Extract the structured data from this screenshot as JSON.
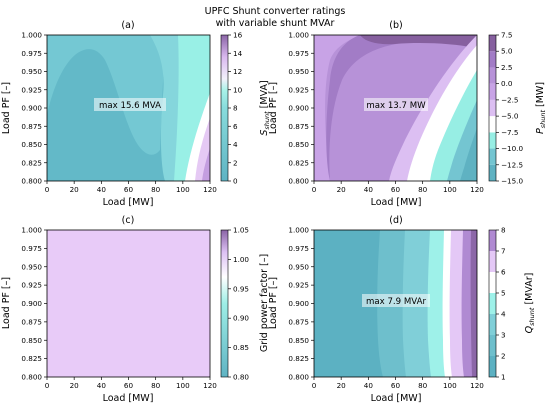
{
  "figure": {
    "title_line1": "UPFC Shunt converter ratings",
    "title_line2": "with variable shunt MVAr"
  },
  "chart_data": [
    {
      "type": "heatmap",
      "panel": "(a)",
      "xlabel": "Load [MW]",
      "ylabel": "Load PF [–]",
      "xlim": [
        0,
        120
      ],
      "ylim": [
        0.8,
        1.0
      ],
      "x_ticks": [
        0,
        20,
        40,
        60,
        80,
        100,
        120
      ],
      "y_ticks": [
        0.8,
        0.825,
        0.85,
        0.875,
        0.9,
        0.925,
        0.95,
        0.975,
        1.0
      ],
      "y_tick_labels": [
        "0.800",
        "0.825",
        "0.850",
        "0.875",
        "0.900",
        "0.925",
        "0.950",
        "0.975",
        "1.000"
      ],
      "colorbar": {
        "label_main": "S",
        "label_sub": "shunt",
        "label_unit": " [MVA]",
        "ticks": [
          0,
          2,
          4,
          6,
          8,
          10,
          12,
          14,
          16
        ],
        "range": [
          0,
          16
        ]
      },
      "annotation": "max 15.6 MVA",
      "contour_regions": [
        {
          "level_range": [
            2,
            4
          ],
          "color": "#63b9c8"
        },
        {
          "level_range": [
            4,
            6
          ],
          "color": "#74c8d3"
        },
        {
          "level_range": [
            6,
            8
          ],
          "color": "#85d6dc"
        },
        {
          "level_range": [
            8,
            10
          ],
          "color": "#99f0e6"
        },
        {
          "level_range": [
            10,
            12
          ],
          "color": "#ffffff"
        },
        {
          "level_range": [
            12,
            14
          ],
          "color": "#e5c9f4"
        },
        {
          "level_range": [
            14,
            16
          ],
          "color": "#c49ee0"
        }
      ]
    },
    {
      "type": "heatmap",
      "panel": "(b)",
      "xlabel": "Load [MW]",
      "ylabel": "Load PF [–]",
      "xlim": [
        0,
        120
      ],
      "ylim": [
        0.8,
        1.0
      ],
      "x_ticks": [
        0,
        20,
        40,
        60,
        80,
        100,
        120
      ],
      "y_ticks": [
        0.8,
        0.825,
        0.85,
        0.875,
        0.9,
        0.925,
        0.95,
        0.975,
        1.0
      ],
      "y_tick_labels": [
        "0.800",
        "0.825",
        "0.850",
        "0.875",
        "0.900",
        "0.925",
        "0.950",
        "0.975",
        "1.000"
      ],
      "colorbar": {
        "label_main": "P",
        "label_sub": "shunt",
        "label_unit": " [MW]",
        "ticks": [
          -15.0,
          -12.5,
          -10.0,
          -7.5,
          -5.0,
          -2.5,
          0.0,
          2.5,
          5.0,
          7.5
        ],
        "tick_labels": [
          "−15.0",
          "−12.5",
          "−10.0",
          "−7.5",
          "−5.0",
          "−2.5",
          "0.0",
          "2.5",
          "5.0",
          "7.5"
        ],
        "range": [
          -15,
          7.5
        ]
      },
      "annotation": "max 13.7 MW",
      "contour_regions": [
        {
          "level_range": [
            -15,
            -12.5
          ],
          "color": "#5fb2c2"
        },
        {
          "level_range": [
            -12.5,
            -10
          ],
          "color": "#74c5d1"
        },
        {
          "level_range": [
            -10,
            -7.5
          ],
          "color": "#97eee4"
        },
        {
          "level_range": [
            -7.5,
            -5
          ],
          "color": "#ffffff"
        },
        {
          "level_range": [
            -5,
            -2.5
          ],
          "color": "#dcbff2"
        },
        {
          "level_range": [
            -2.5,
            0
          ],
          "color": "#c8a3e6"
        },
        {
          "level_range": [
            0,
            2.5
          ],
          "color": "#b792d8"
        },
        {
          "level_range": [
            2.5,
            5
          ],
          "color": "#a27cc6"
        },
        {
          "level_range": [
            5,
            7.5
          ],
          "color": "#86609f"
        }
      ]
    },
    {
      "type": "heatmap",
      "panel": "(c)",
      "xlabel": "Load [MW]",
      "ylabel": "Load PF [–]",
      "xlim": [
        0,
        120
      ],
      "ylim": [
        0.8,
        1.0
      ],
      "x_ticks": [
        0,
        20,
        40,
        60,
        80,
        100,
        120
      ],
      "y_ticks": [
        0.8,
        0.825,
        0.85,
        0.875,
        0.9,
        0.925,
        0.95,
        0.975,
        1.0
      ],
      "y_tick_labels": [
        "0.800",
        "0.825",
        "0.850",
        "0.875",
        "0.900",
        "0.925",
        "0.950",
        "0.975",
        "1.000"
      ],
      "colorbar": {
        "label": "Grid power factor [–]",
        "ticks": [
          0.8,
          0.85,
          0.9,
          0.95,
          1.0,
          1.05
        ],
        "tick_labels": [
          "0.80",
          "0.85",
          "0.90",
          "0.95",
          "1.00",
          "1.05"
        ],
        "range": [
          0.8,
          1.05
        ]
      },
      "value_everywhere": 1.0,
      "fill_color": "#e8cbf8"
    },
    {
      "type": "heatmap",
      "panel": "(d)",
      "xlabel": "Load [MW]",
      "ylabel": "Load PF [–]",
      "xlim": [
        0,
        120
      ],
      "ylim": [
        0.8,
        1.0
      ],
      "x_ticks": [
        0,
        20,
        40,
        60,
        80,
        100,
        120
      ],
      "y_ticks": [
        0.8,
        0.825,
        0.85,
        0.875,
        0.9,
        0.925,
        0.95,
        0.975,
        1.0
      ],
      "y_tick_labels": [
        "0.800",
        "0.825",
        "0.850",
        "0.875",
        "0.900",
        "0.925",
        "0.950",
        "0.975",
        "1.000"
      ],
      "colorbar": {
        "label_main": "Q",
        "label_sub": "shunt",
        "label_unit": " [MVAr]",
        "ticks": [
          1,
          2,
          3,
          4,
          5,
          6,
          7,
          8
        ],
        "range": [
          1,
          8
        ]
      },
      "annotation": "max 7.9 MVAr",
      "contour_regions": [
        {
          "level_range": [
            1,
            2
          ],
          "color": "#5cb1c2"
        },
        {
          "level_range": [
            2,
            3
          ],
          "color": "#6ebfcc"
        },
        {
          "level_range": [
            3,
            4
          ],
          "color": "#80cfd8"
        },
        {
          "level_range": [
            4,
            5
          ],
          "color": "#9ef1e9"
        },
        {
          "level_range": [
            5,
            6
          ],
          "color": "#ffffff"
        },
        {
          "level_range": [
            6,
            7
          ],
          "color": "#e4c8f6"
        },
        {
          "level_range": [
            7,
            8
          ],
          "color": "#b08ad2"
        }
      ]
    }
  ]
}
